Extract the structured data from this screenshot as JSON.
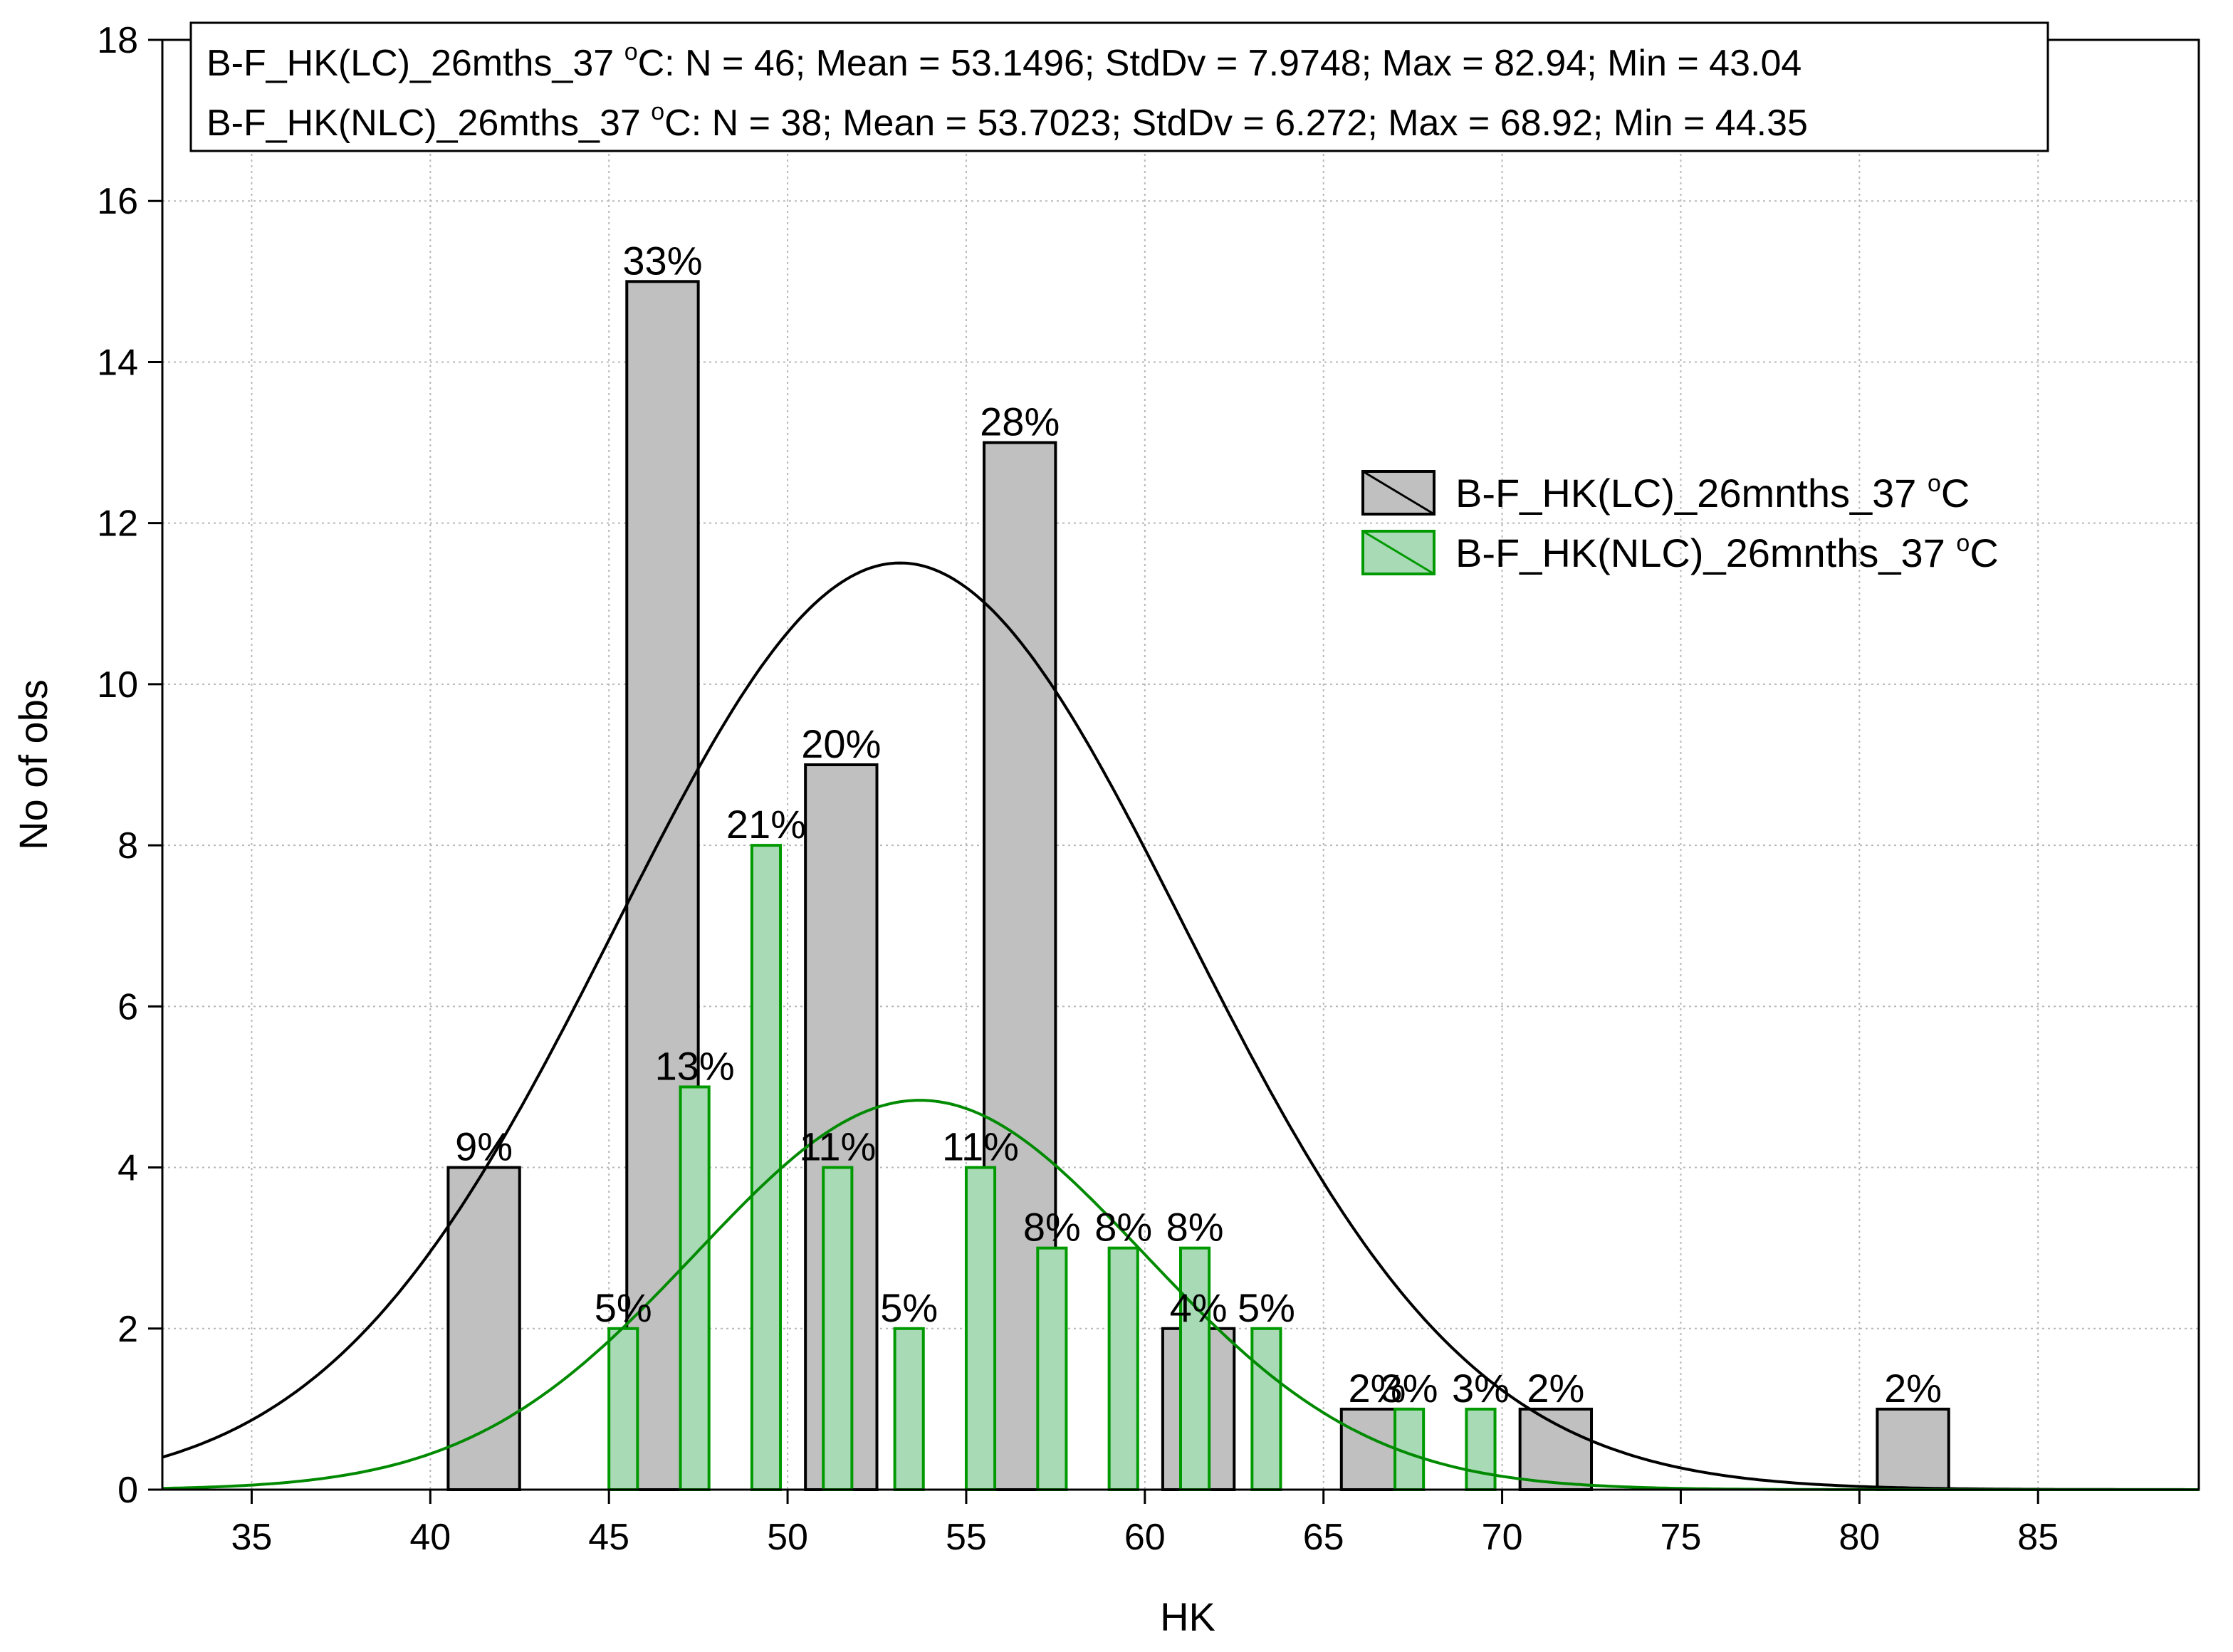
{
  "chart_data": {
    "type": "bar",
    "xlabel": "HK",
    "ylabel": "No of obs",
    "xlim": [
      32.5,
      89.5
    ],
    "ylim": [
      0,
      18
    ],
    "xticks": [
      35,
      40,
      45,
      50,
      55,
      60,
      65,
      70,
      75,
      80,
      85
    ],
    "yticks": [
      0,
      2,
      4,
      6,
      8,
      10,
      12,
      14,
      16,
      18
    ],
    "grid": true,
    "legend_position": "right",
    "stats_box": [
      {
        "name": "B-F_HK(LC)_26mths_37 ",
        "sup": "o",
        "rest": "C: N = 46; Mean = 53.1496; StdDv = 7.9748; Max = 82.94; Min = 43.04"
      },
      {
        "name": "B-F_HK(NLC)_26mths_37 ",
        "sup": "o",
        "rest": "C: N = 38; Mean = 53.7023; StdDv = 6.272; Max = 68.92; Min = 44.35"
      }
    ],
    "series": [
      {
        "name": "B-F_HK(LC)_26mnths_37 ",
        "sup": "o",
        "unit": "C",
        "fill": "#c0c0c0",
        "stroke": "#000000",
        "curve_color": "#000000",
        "n": 46,
        "mean": 53.1496,
        "sd": 7.9748,
        "bin_width": 5,
        "bins": [
          {
            "from": 40.5,
            "to": 42.5,
            "value": 4,
            "label": "9%"
          },
          {
            "from": 45.5,
            "to": 47.5,
            "value": 15,
            "label": "33%"
          },
          {
            "from": 50.5,
            "to": 52.5,
            "value": 9,
            "label": "20%"
          },
          {
            "from": 55.5,
            "to": 57.5,
            "value": 13,
            "label": "28%"
          },
          {
            "from": 60.5,
            "to": 62.5,
            "value": 2,
            "label": "4%"
          },
          {
            "from": 65.5,
            "to": 67.5,
            "value": 1,
            "label": "2%"
          },
          {
            "from": 70.5,
            "to": 72.5,
            "value": 1,
            "label": "2%"
          },
          {
            "from": 80.5,
            "to": 82.5,
            "value": 1,
            "label": "2%"
          }
        ]
      },
      {
        "name": "B-F_HK(NLC)_26mnths_37 ",
        "sup": "o",
        "unit": "C",
        "fill": "#a8dab5",
        "stroke": "#009a00",
        "curve_color": "#008a00",
        "n": 38,
        "mean": 53.7023,
        "sd": 6.272,
        "bin_width": 2,
        "bins": [
          {
            "from": 45.0,
            "to": 45.8,
            "value": 2,
            "label": "5%"
          },
          {
            "from": 47.0,
            "to": 47.8,
            "value": 5,
            "label": "13%"
          },
          {
            "from": 49.0,
            "to": 49.8,
            "value": 8,
            "label": "21%"
          },
          {
            "from": 51.0,
            "to": 51.8,
            "value": 4,
            "label": "11%"
          },
          {
            "from": 53.0,
            "to": 53.8,
            "value": 2,
            "label": "5%"
          },
          {
            "from": 55.0,
            "to": 55.8,
            "value": 4,
            "label": "11%"
          },
          {
            "from": 57.0,
            "to": 57.8,
            "value": 3,
            "label": "8%"
          },
          {
            "from": 59.0,
            "to": 59.8,
            "value": 3,
            "label": "8%"
          },
          {
            "from": 61.0,
            "to": 61.8,
            "value": 3,
            "label": "8%"
          },
          {
            "from": 63.0,
            "to": 63.8,
            "value": 2,
            "label": "5%"
          },
          {
            "from": 67.0,
            "to": 67.8,
            "value": 1,
            "label": "3%"
          },
          {
            "from": 69.0,
            "to": 69.8,
            "value": 1,
            "label": "3%"
          }
        ]
      }
    ]
  }
}
